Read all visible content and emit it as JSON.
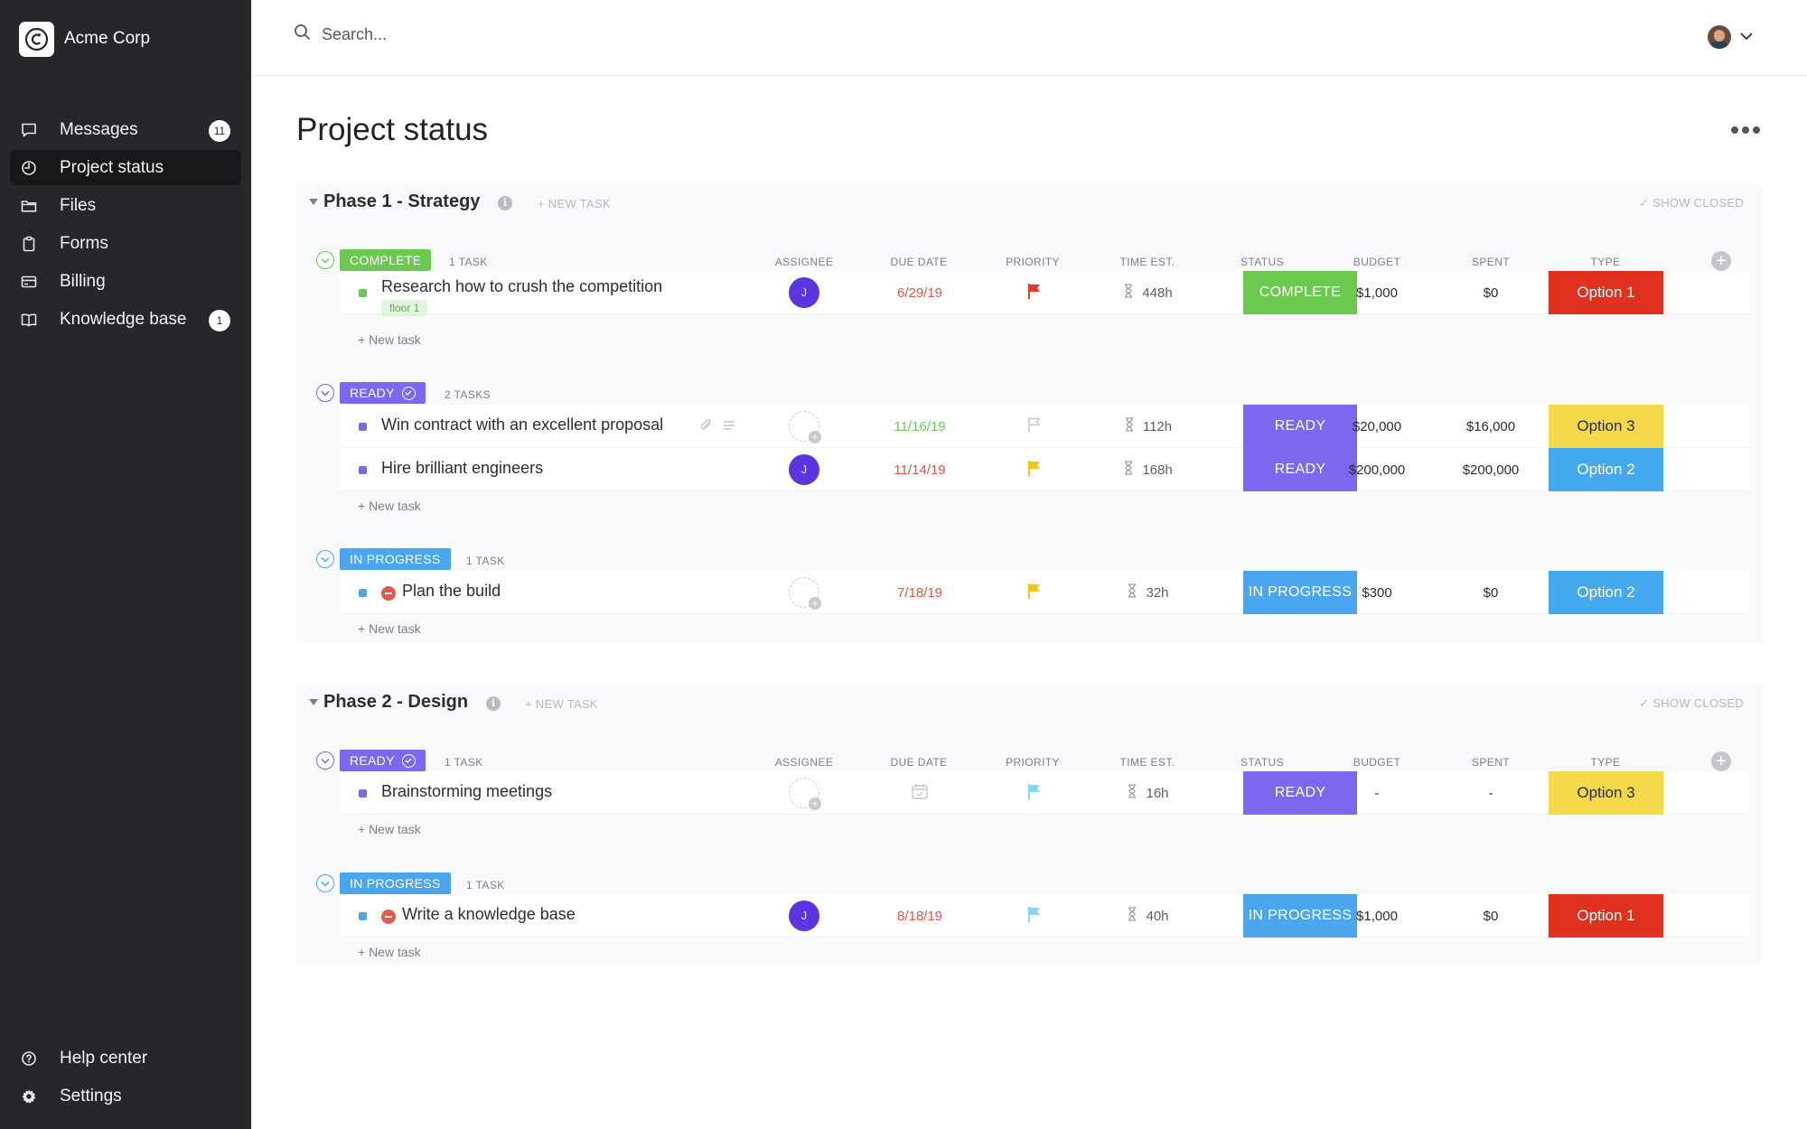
{
  "app": {
    "name": "Acme Corp"
  },
  "sidebar": {
    "items": [
      {
        "label": "Messages",
        "icon": "message-icon",
        "badge": "11"
      },
      {
        "label": "Project status",
        "icon": "chart-icon",
        "active": true
      },
      {
        "label": "Files",
        "icon": "folder-icon"
      },
      {
        "label": "Forms",
        "icon": "clipboard-icon"
      },
      {
        "label": "Billing",
        "icon": "credit-card-icon"
      },
      {
        "label": "Knowledge base",
        "icon": "book-icon",
        "badge": "1"
      }
    ],
    "bottom": [
      {
        "label": "Help center",
        "icon": "help-icon"
      },
      {
        "label": "Settings",
        "icon": "gear-icon"
      }
    ]
  },
  "search": {
    "placeholder": "Search..."
  },
  "page": {
    "title": "Project status"
  },
  "columns": {
    "assignee": "ASSIGNEE",
    "due_date": "DUE DATE",
    "priority": "PRIORITY",
    "time_est": "TIME EST.",
    "status": "STATUS",
    "budget": "BUDGET",
    "spent": "SPENT",
    "type": "TYPE"
  },
  "labels": {
    "new_task_header": "+ NEW TASK",
    "show_closed": "SHOW CLOSED",
    "new_task_row": "+ New task"
  },
  "colors": {
    "complete": "#6bc950",
    "ready": "#7b68ee",
    "in_progress": "#4aa6ee",
    "option1": "#e0301e",
    "option2": "#45a9f0",
    "option3": "#f5d94a",
    "due_overdue": "#e3534a",
    "due_ok": "#6bc950",
    "flag_red": "#e8382d",
    "flag_yellow": "#f5c518",
    "flag_blue": "#8cd3f5",
    "flag_none": "#c4c8cd"
  },
  "phases": [
    {
      "title": "Phase 1 - Strategy",
      "groups": [
        {
          "status": "COMPLETE",
          "count": "1 TASK",
          "tasks": [
            {
              "name": "Research how to crush the competition",
              "tag": "floor 1",
              "assignee": "J",
              "due": "6/29/19",
              "priority": "red",
              "time": "448h",
              "status": "COMPLETE",
              "budget": "$1,000",
              "spent": "$0",
              "type": "Option 1"
            }
          ]
        },
        {
          "status": "READY",
          "count": "2 TASKS",
          "tasks": [
            {
              "name": "Win contract with an excellent proposal",
              "assignee": "",
              "due": "11/16/19",
              "priority": "none",
              "time": "112h",
              "status": "READY",
              "budget": "$20,000",
              "spent": "$16,000",
              "type": "Option 3"
            },
            {
              "name": "Hire brilliant engineers",
              "assignee": "J",
              "due": "11/14/19",
              "priority": "yellow",
              "time": "168h",
              "status": "READY",
              "budget": "$200,000",
              "spent": "$200,000",
              "type": "Option 2"
            }
          ]
        },
        {
          "status": "IN PROGRESS",
          "count": "1 TASK",
          "tasks": [
            {
              "name": "Plan the build",
              "blocked": true,
              "assignee": "",
              "due": "7/18/19",
              "priority": "yellow",
              "time": "32h",
              "status": "IN PROGRESS",
              "budget": "$300",
              "spent": "$0",
              "type": "Option 2"
            }
          ]
        }
      ]
    },
    {
      "title": "Phase 2 - Design",
      "groups": [
        {
          "status": "READY",
          "count": "1 TASK",
          "tasks": [
            {
              "name": "Brainstorming meetings",
              "assignee": "",
              "due": "",
              "priority": "blue",
              "time": "16h",
              "status": "READY",
              "budget": "-",
              "spent": "-",
              "type": "Option 3"
            }
          ]
        },
        {
          "status": "IN PROGRESS",
          "count": "1 TASK",
          "tasks": [
            {
              "name": "Write a knowledge base",
              "blocked": true,
              "assignee": "J",
              "due": "8/18/19",
              "priority": "blue",
              "time": "40h",
              "status": "IN PROGRESS",
              "budget": "$1,000",
              "spent": "$0",
              "type": "Option 1"
            }
          ]
        }
      ]
    }
  ]
}
